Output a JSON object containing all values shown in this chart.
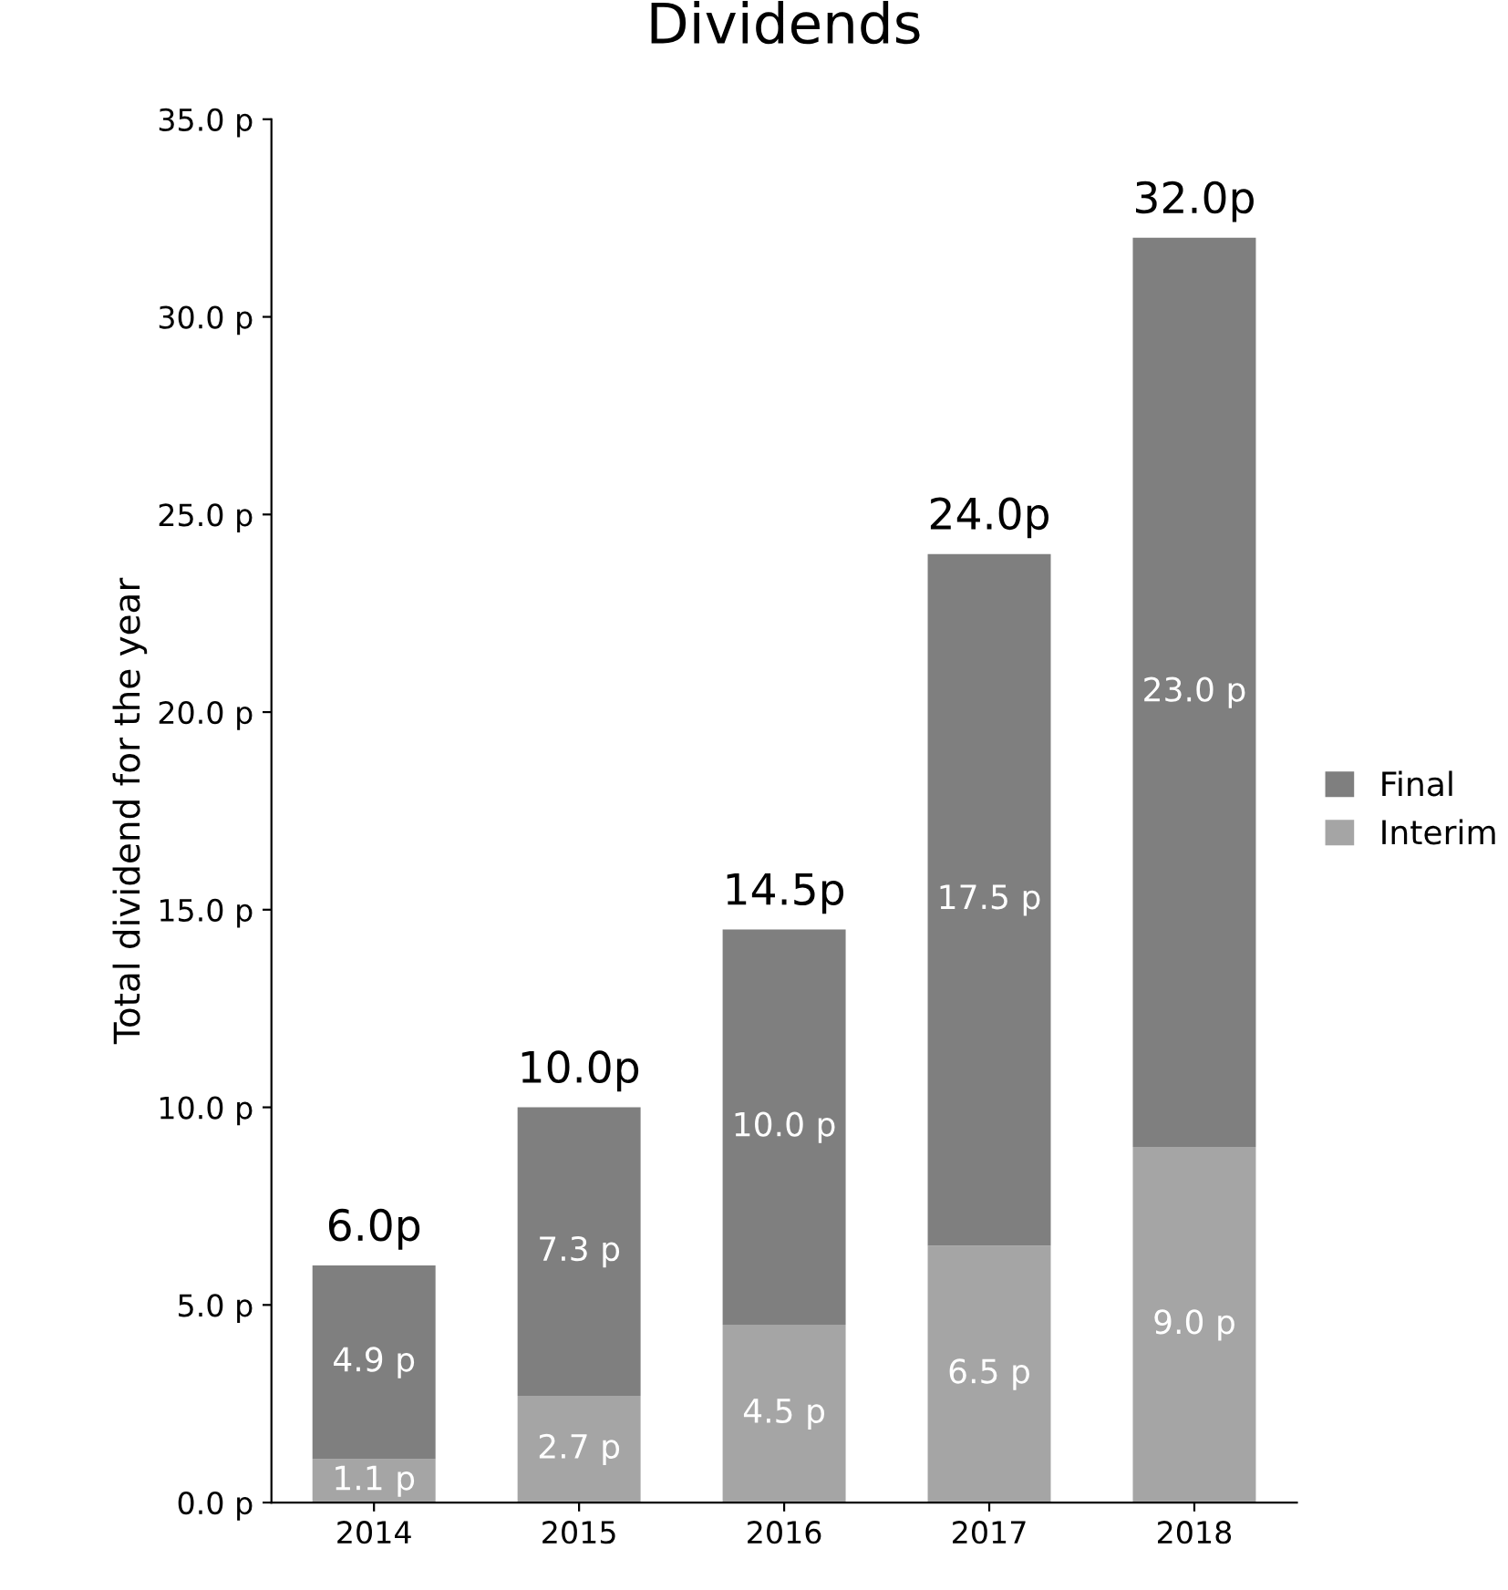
{
  "chart_data": {
    "type": "bar",
    "title": "Dividends",
    "ylabel": "Total dividend for the year",
    "categories": [
      "2014",
      "2015",
      "2016",
      "2017",
      "2018"
    ],
    "stacked": true,
    "series": [
      {
        "name": "Interim",
        "color": "#a5a5a5",
        "values": [
          1.1,
          2.7,
          4.5,
          6.5,
          9.0
        ],
        "value_labels": [
          "1.1 p",
          "2.7 p",
          "4.5 p",
          "6.5 p",
          "9.0 p"
        ]
      },
      {
        "name": "Final",
        "color": "#7f7f7f",
        "values": [
          4.9,
          7.3,
          10.0,
          17.5,
          23.0
        ],
        "value_labels": [
          "4.9 p",
          "7.3 p",
          "10.0 p",
          "17.5 p",
          "23.0 p"
        ]
      }
    ],
    "totals": [
      "6.0p",
      "10.0p",
      "14.5p",
      "24.0p",
      "32.0p"
    ],
    "ylim": [
      0,
      35
    ],
    "yticks": [
      {
        "value": 0,
        "label": "0.0 p"
      },
      {
        "value": 5,
        "label": "5.0 p"
      },
      {
        "value": 10,
        "label": "10.0 p"
      },
      {
        "value": 15,
        "label": "15.0 p"
      },
      {
        "value": 20,
        "label": "20.0 p"
      },
      {
        "value": 25,
        "label": "25.0 p"
      },
      {
        "value": 30,
        "label": "30.0 p"
      },
      {
        "value": 35,
        "label": "35.0 p"
      }
    ],
    "grid": false,
    "legend": "right"
  }
}
